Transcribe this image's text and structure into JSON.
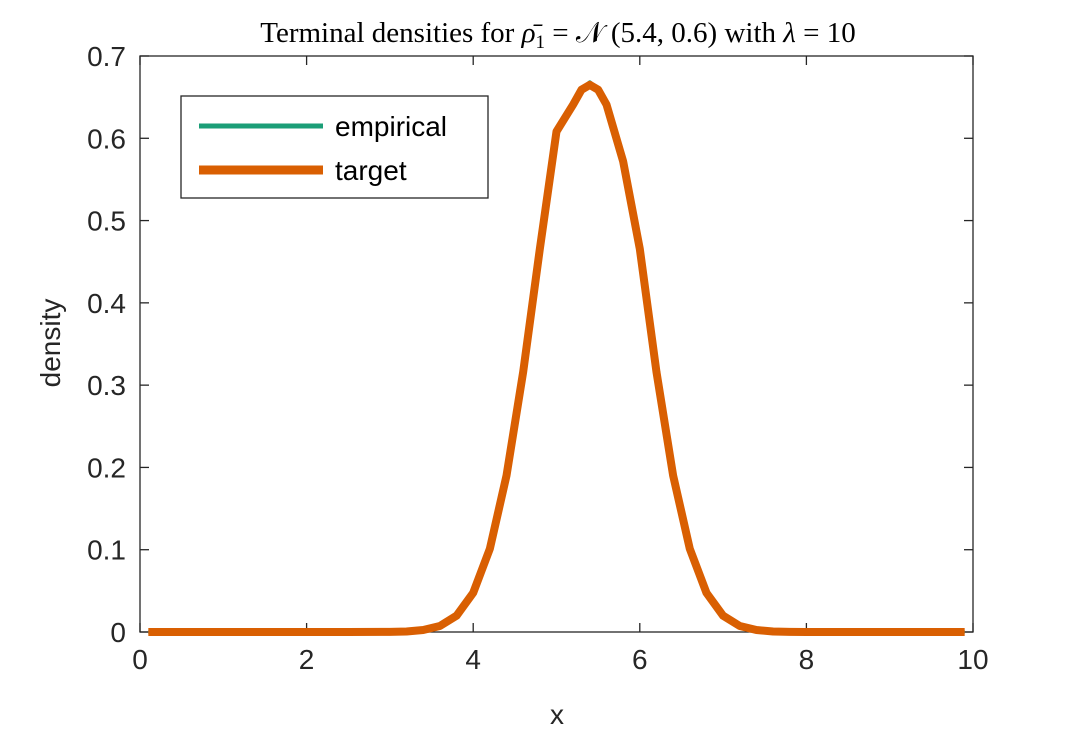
{
  "chart_data": {
    "type": "line",
    "title_parts": {
      "prefix": "Terminal densities for ",
      "symbol": "ρ̄",
      "subscript": "1",
      "middle": " = 𝒩 (5.4, 0.6) with ",
      "lambda": "λ",
      "suffix": " = 10"
    },
    "xlabel": "x",
    "ylabel": "density",
    "xlim": [
      0,
      10
    ],
    "ylim": [
      0,
      0.7
    ],
    "x_ticks": [
      0,
      2,
      4,
      6,
      8,
      10
    ],
    "x_tick_labels": [
      "0",
      "2",
      "4",
      "6",
      "8",
      "10"
    ],
    "y_ticks": [
      0,
      0.1,
      0.2,
      0.3,
      0.4,
      0.5,
      0.6,
      0.7
    ],
    "y_tick_labels": [
      "0",
      "0.1",
      "0.2",
      "0.3",
      "0.4",
      "0.5",
      "0.6",
      "0.7"
    ],
    "grid": false,
    "legend_location": "top-left",
    "x": [
      0.1,
      0.5,
      1.0,
      1.5,
      2.0,
      2.5,
      3.0,
      3.2,
      3.4,
      3.6,
      3.8,
      4.0,
      4.2,
      4.4,
      4.6,
      4.8,
      5.0,
      5.2,
      5.3,
      5.4,
      5.5,
      5.6,
      5.8,
      6.0,
      6.2,
      6.4,
      6.6,
      6.8,
      7.0,
      7.2,
      7.4,
      7.6,
      7.8,
      8.0,
      8.5,
      9.0,
      9.5,
      9.9
    ],
    "series": [
      {
        "name": "empirical",
        "color": "#1b9e77",
        "values": [
          0,
          0,
          0,
          0,
          0,
          0,
          0.0002,
          0.0006,
          0.0024,
          0.0073,
          0.0198,
          0.0476,
          0.1012,
          0.1902,
          0.3161,
          0.4656,
          0.6083,
          0.6415,
          0.6595,
          0.668,
          0.6594,
          0.641,
          0.57,
          0.465,
          0.315,
          0.1902,
          0.1012,
          0.0476,
          0.0198,
          0.0073,
          0.0024,
          0.0006,
          0.0002,
          0,
          0,
          0,
          0,
          0
        ]
      },
      {
        "name": "target",
        "color": "#d95f02",
        "values": [
          0,
          0,
          0,
          0,
          0,
          0,
          0.0002,
          0.0006,
          0.0024,
          0.0073,
          0.0198,
          0.0476,
          0.1012,
          0.1902,
          0.3161,
          0.4656,
          0.6083,
          0.641,
          0.659,
          0.6649,
          0.659,
          0.641,
          0.572,
          0.4656,
          0.3161,
          0.1902,
          0.1012,
          0.0476,
          0.0198,
          0.0073,
          0.0024,
          0.0006,
          0.0002,
          0,
          0,
          0,
          0,
          0
        ]
      }
    ]
  }
}
